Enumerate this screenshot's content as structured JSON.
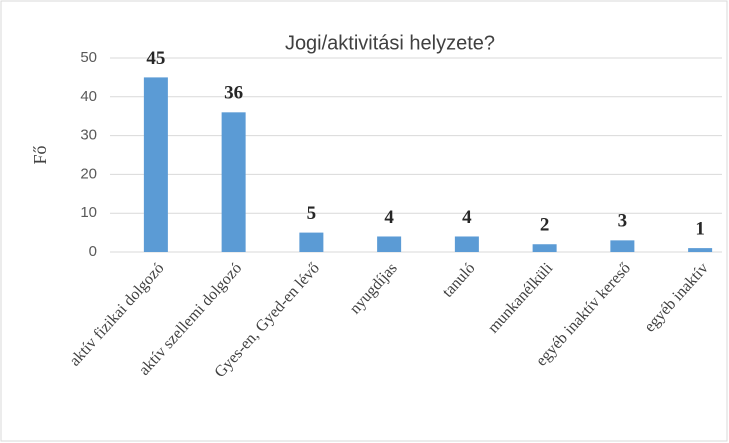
{
  "chart_data": {
    "type": "bar",
    "title": "Jogi/aktivitási helyzete?",
    "y_label": "Fő",
    "categories": [
      "aktív fizikai dolgozó",
      "aktív szellemi dolgozó",
      "Gyes-en, Gyed-en lévő",
      "nyugdíjas",
      "tanuló",
      "munkanélküli",
      "egyéb inaktív kereső",
      "egyéb inaktív"
    ],
    "values": [
      45,
      36,
      5,
      4,
      4,
      2,
      3,
      1
    ],
    "color": "#5b9bd5",
    "ylim": [
      0,
      50
    ],
    "yticks": [
      0,
      10,
      20,
      30,
      40,
      50
    ],
    "grid": true
  }
}
